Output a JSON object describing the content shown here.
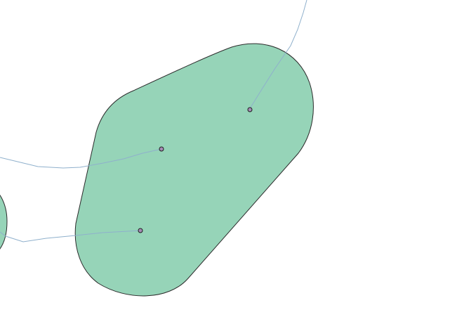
{
  "map": {
    "background_color": "#ffffff",
    "buffer_area": {
      "fill_color": "#96d4b8",
      "stroke_color": "#2b2b2b"
    },
    "partial_buffer_area": {
      "fill_color": "#96d4b8",
      "stroke_color": "#2b2b2b"
    },
    "routes": {
      "stroke_color": "#8fb0cc",
      "count": 3
    },
    "points": {
      "fill_color": "#a58bb5",
      "stroke_color": "#1e1e1e",
      "count": 3
    }
  }
}
